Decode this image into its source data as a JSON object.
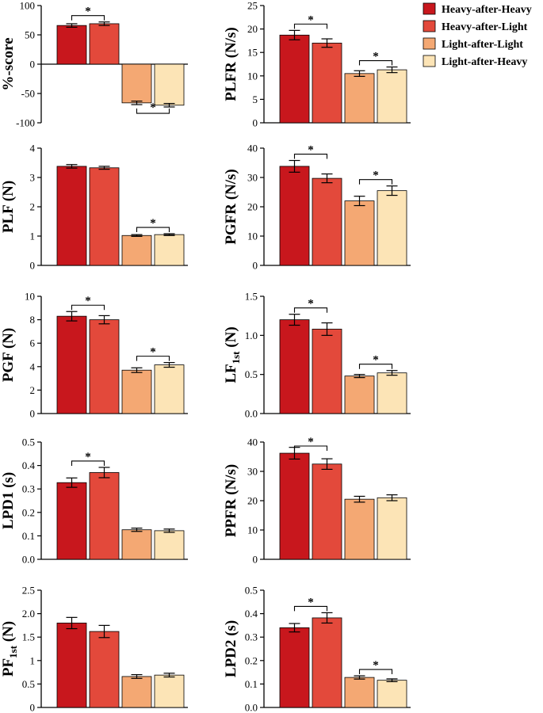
{
  "legend": {
    "entries": [
      {
        "label": "Heavy-after-Heavy",
        "color": "#c8171d"
      },
      {
        "label": "Heavy-after-Light",
        "color": "#e3493b"
      },
      {
        "label": "Light-after-Light",
        "color": "#f4a873"
      },
      {
        "label": "Light-after-Heavy",
        "color": "#fce4b6"
      }
    ]
  },
  "colors": {
    "bar_edge": "#000000",
    "axis": "#000000"
  },
  "significance_marker": "*",
  "chart_data": [
    {
      "id": "pct-score",
      "type": "bar",
      "ylabel": "%-score",
      "ylabel_sub": "",
      "ylabel_rest": "",
      "categories": [
        "Heavy-after-Heavy",
        "Heavy-after-Light",
        "Light-after-Light",
        "Light-after-Heavy"
      ],
      "values": [
        66,
        69,
        -66,
        -70
      ],
      "errors": [
        3,
        3,
        3,
        3
      ],
      "ylim": [
        -100,
        100
      ],
      "yticks": [
        "-100",
        "-50",
        "0",
        "50",
        "100"
      ],
      "significance": [
        {
          "pair": [
            0,
            1
          ],
          "position": "above"
        },
        {
          "pair": [
            2,
            3
          ],
          "position": "below"
        }
      ]
    },
    {
      "id": "plfr",
      "type": "bar",
      "ylabel": "PLFR (N/s)",
      "ylabel_sub": "",
      "ylabel_rest": "",
      "categories": [
        "Heavy-after-Heavy",
        "Heavy-after-Light",
        "Light-after-Light",
        "Light-after-Heavy"
      ],
      "values": [
        18.7,
        17.0,
        10.5,
        11.3
      ],
      "errors": [
        1.0,
        0.9,
        0.6,
        0.6
      ],
      "ylim": [
        0,
        25
      ],
      "yticks": [
        "0",
        "5",
        "10",
        "15",
        "20",
        "25"
      ],
      "significance": [
        {
          "pair": [
            0,
            1
          ],
          "position": "above"
        },
        {
          "pair": [
            2,
            3
          ],
          "position": "above"
        }
      ]
    },
    {
      "id": "plf",
      "type": "bar",
      "ylabel": "PLF (N)",
      "ylabel_sub": "",
      "ylabel_rest": "",
      "categories": [
        "Heavy-after-Heavy",
        "Heavy-after-Light",
        "Light-after-Light",
        "Light-after-Heavy"
      ],
      "values": [
        3.38,
        3.33,
        1.02,
        1.05
      ],
      "errors": [
        0.06,
        0.05,
        0.03,
        0.03
      ],
      "ylim": [
        0,
        4
      ],
      "yticks": [
        "0",
        "1",
        "2",
        "3",
        "4"
      ],
      "significance": [
        {
          "pair": [
            2,
            3
          ],
          "position": "above"
        }
      ]
    },
    {
      "id": "pgfr",
      "type": "bar",
      "ylabel": "PGFR (N/s)",
      "ylabel_sub": "",
      "ylabel_rest": "",
      "categories": [
        "Heavy-after-Heavy",
        "Heavy-after-Light",
        "Light-after-Light",
        "Light-after-Heavy"
      ],
      "values": [
        33.8,
        29.7,
        22.0,
        25.5
      ],
      "errors": [
        2.0,
        1.5,
        1.6,
        1.6
      ],
      "ylim": [
        0,
        40
      ],
      "yticks": [
        "0",
        "10",
        "20",
        "30",
        "40"
      ],
      "significance": [
        {
          "pair": [
            0,
            1
          ],
          "position": "above"
        },
        {
          "pair": [
            2,
            3
          ],
          "position": "above"
        }
      ]
    },
    {
      "id": "pgf",
      "type": "bar",
      "ylabel": "PGF (N)",
      "ylabel_sub": "",
      "ylabel_rest": "",
      "categories": [
        "Heavy-after-Heavy",
        "Heavy-after-Light",
        "Light-after-Light",
        "Light-after-Heavy"
      ],
      "values": [
        8.3,
        8.0,
        3.7,
        4.15
      ],
      "errors": [
        0.4,
        0.35,
        0.2,
        0.2
      ],
      "ylim": [
        0,
        10
      ],
      "yticks": [
        "0",
        "2",
        "4",
        "6",
        "8",
        "10"
      ],
      "significance": [
        {
          "pair": [
            0,
            1
          ],
          "position": "above"
        },
        {
          "pair": [
            2,
            3
          ],
          "position": "above"
        }
      ]
    },
    {
      "id": "lf1st",
      "type": "bar",
      "ylabel": "LF",
      "ylabel_sub": "1st",
      "ylabel_rest": " (N)",
      "categories": [
        "Heavy-after-Heavy",
        "Heavy-after-Light",
        "Light-after-Light",
        "Light-after-Heavy"
      ],
      "values": [
        1.2,
        1.08,
        0.48,
        0.52
      ],
      "errors": [
        0.07,
        0.08,
        0.02,
        0.03
      ],
      "ylim": [
        0,
        1.5
      ],
      "yticks": [
        "0.0",
        "0.5",
        "1.0",
        "1.5"
      ],
      "significance": [
        {
          "pair": [
            0,
            1
          ],
          "position": "above"
        },
        {
          "pair": [
            2,
            3
          ],
          "position": "above"
        }
      ]
    },
    {
      "id": "lpd1",
      "type": "bar",
      "ylabel": "LPD1 (s)",
      "ylabel_sub": "",
      "ylabel_rest": "",
      "categories": [
        "Heavy-after-Heavy",
        "Heavy-after-Light",
        "Light-after-Light",
        "Light-after-Heavy"
      ],
      "values": [
        0.327,
        0.37,
        0.126,
        0.122
      ],
      "errors": [
        0.02,
        0.022,
        0.007,
        0.007
      ],
      "ylim": [
        0,
        0.5
      ],
      "yticks": [
        "0.0",
        "0.1",
        "0.2",
        "0.3",
        "0.4",
        "0.5"
      ],
      "significance": [
        {
          "pair": [
            0,
            1
          ],
          "position": "above"
        }
      ]
    },
    {
      "id": "ppfr",
      "type": "bar",
      "ylabel": "PPFR (N/s)",
      "ylabel_sub": "",
      "ylabel_rest": "",
      "categories": [
        "Heavy-after-Heavy",
        "Heavy-after-Light",
        "Light-after-Light",
        "Light-after-Heavy"
      ],
      "values": [
        36.2,
        32.5,
        20.5,
        21.0
      ],
      "errors": [
        2.0,
        1.8,
        1.0,
        1.0
      ],
      "ylim": [
        0,
        40
      ],
      "yticks": [
        "0",
        "10",
        "20",
        "30",
        "40"
      ],
      "significance": [
        {
          "pair": [
            0,
            1
          ],
          "position": "above"
        }
      ]
    },
    {
      "id": "pf1st",
      "type": "bar",
      "ylabel": "PF",
      "ylabel_sub": "1st",
      "ylabel_rest": " (N)",
      "categories": [
        "Heavy-after-Heavy",
        "Heavy-after-Light",
        "Light-after-Light",
        "Light-after-Heavy"
      ],
      "values": [
        1.8,
        1.62,
        0.66,
        0.69
      ],
      "errors": [
        0.12,
        0.13,
        0.04,
        0.04
      ],
      "ylim": [
        0,
        2.5
      ],
      "yticks": [
        "0",
        "0.5",
        "1",
        "1.5",
        "2.0",
        "2.5"
      ],
      "significance": []
    },
    {
      "id": "lpd2",
      "type": "bar",
      "ylabel": "LPD2 (s)",
      "ylabel_sub": "",
      "ylabel_rest": "",
      "categories": [
        "Heavy-after-Heavy",
        "Heavy-after-Light",
        "Light-after-Light",
        "Light-after-Heavy"
      ],
      "values": [
        0.34,
        0.382,
        0.128,
        0.116
      ],
      "errors": [
        0.018,
        0.022,
        0.007,
        0.006
      ],
      "ylim": [
        0,
        0.5
      ],
      "yticks": [
        "0.0",
        "0.1",
        "0.2",
        "0.3",
        "0.4",
        "0.5"
      ],
      "significance": [
        {
          "pair": [
            0,
            1
          ],
          "position": "above"
        },
        {
          "pair": [
            2,
            3
          ],
          "position": "above"
        }
      ]
    }
  ]
}
